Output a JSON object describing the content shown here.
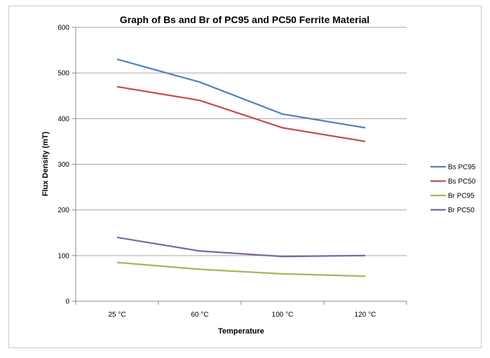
{
  "chart_data": {
    "type": "line",
    "title": "Graph of Bs and Br of PC95 and PC50 Ferrite Material",
    "xlabel": "Temperature",
    "ylabel": "Flux Density (mT)",
    "categories": [
      "25 °C",
      "60 °C",
      "100 °C",
      "120 °C"
    ],
    "ylim": [
      0,
      600
    ],
    "yticks": [
      0,
      100,
      200,
      300,
      400,
      500,
      600
    ],
    "grid": true,
    "legend_position": "right",
    "series": [
      {
        "name": "Bs PC95",
        "color": "#4f81bd",
        "values": [
          530,
          480,
          410,
          380
        ]
      },
      {
        "name": "Bs PC50",
        "color": "#c0504d",
        "values": [
          470,
          440,
          380,
          350
        ]
      },
      {
        "name": "Br PC95",
        "color": "#9bbb59",
        "values": [
          85,
          70,
          60,
          55
        ]
      },
      {
        "name": "Br PC50",
        "color": "#8064a2",
        "values": [
          140,
          110,
          98,
          100
        ]
      }
    ]
  }
}
